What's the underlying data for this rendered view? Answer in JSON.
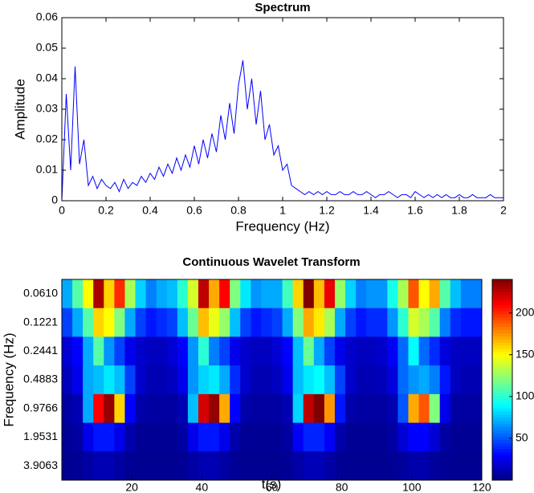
{
  "chart_data": [
    {
      "type": "line",
      "title": "Spectrum",
      "xlabel": "Frequency (Hz)",
      "ylabel": "Amplitude",
      "color": "#0000ff",
      "x": [
        0,
        0.02,
        0.04,
        0.06,
        0.08,
        0.1,
        0.12,
        0.14,
        0.16,
        0.18,
        0.2,
        0.22,
        0.24,
        0.26,
        0.28,
        0.3,
        0.32,
        0.34,
        0.36,
        0.38,
        0.4,
        0.42,
        0.44,
        0.46,
        0.48,
        0.5,
        0.52,
        0.54,
        0.56,
        0.58,
        0.6,
        0.62,
        0.64,
        0.66,
        0.68,
        0.7,
        0.72,
        0.74,
        0.76,
        0.78,
        0.8,
        0.82,
        0.84,
        0.86,
        0.88,
        0.9,
        0.92,
        0.94,
        0.96,
        0.98,
        1,
        1.02,
        1.04,
        1.06,
        1.08,
        1.1,
        1.12,
        1.14,
        1.16,
        1.18,
        1.2,
        1.22,
        1.24,
        1.26,
        1.28,
        1.3,
        1.32,
        1.34,
        1.36,
        1.38,
        1.4,
        1.42,
        1.44,
        1.46,
        1.48,
        1.5,
        1.52,
        1.54,
        1.56,
        1.58,
        1.6,
        1.62,
        1.64,
        1.66,
        1.68,
        1.7,
        1.72,
        1.74,
        1.76,
        1.78,
        1.8,
        1.82,
        1.84,
        1.86,
        1.88,
        1.9,
        1.92,
        1.94,
        1.96,
        1.98,
        2
      ],
      "values": [
        0,
        0.035,
        0.01,
        0.044,
        0.012,
        0.02,
        0.005,
        0.008,
        0.004,
        0.007,
        0.005,
        0.004,
        0.006,
        0.003,
        0.007,
        0.004,
        0.006,
        0.005,
        0.008,
        0.006,
        0.009,
        0.007,
        0.011,
        0.008,
        0.012,
        0.009,
        0.014,
        0.01,
        0.015,
        0.011,
        0.018,
        0.012,
        0.02,
        0.014,
        0.022,
        0.016,
        0.028,
        0.02,
        0.032,
        0.022,
        0.038,
        0.046,
        0.03,
        0.04,
        0.025,
        0.036,
        0.02,
        0.025,
        0.015,
        0.018,
        0.01,
        0.012,
        0.005,
        0.004,
        0.003,
        0.002,
        0.003,
        0.002,
        0.003,
        0.002,
        0.003,
        0.002,
        0.002,
        0.003,
        0.002,
        0.002,
        0.003,
        0.002,
        0.002,
        0.003,
        0.002,
        0.001,
        0.002,
        0.002,
        0.003,
        0.002,
        0.001,
        0.002,
        0.002,
        0.001,
        0.003,
        0.002,
        0.001,
        0.002,
        0.001,
        0.002,
        0.001,
        0.002,
        0.001,
        0.001,
        0.002,
        0.001,
        0.001,
        0.002,
        0.001,
        0.001,
        0.001,
        0.002,
        0.001,
        0.001,
        0.001
      ],
      "xlim": [
        0,
        2
      ],
      "xticks": [
        0,
        0.2,
        0.4,
        0.6,
        0.8,
        1,
        1.2,
        1.4,
        1.6,
        1.8,
        2
      ],
      "ylim": [
        0,
        0.06
      ],
      "yticks": [
        0,
        0.01,
        0.02,
        0.03,
        0.04,
        0.05,
        0.06
      ]
    },
    {
      "type": "heatmap",
      "title": "Continuous Wavelet Transform",
      "xlabel": "t(s)",
      "ylabel": "Frequency (Hz)",
      "y_categories": [
        "0.0610",
        "0.1221",
        "0.2441",
        "0.4883",
        "0.9766",
        "1.9531",
        "3.9063"
      ],
      "xlim": [
        0,
        120
      ],
      "xticks": [
        20,
        40,
        60,
        80,
        100,
        120
      ],
      "colormap": "jet",
      "clim": [
        0,
        240
      ],
      "cticks": [
        50,
        100,
        150,
        200
      ],
      "values": [
        [
          70,
          110,
          150,
          230,
          160,
          200,
          130,
          80,
          60,
          70,
          75,
          100,
          140,
          225,
          170,
          210,
          120,
          85,
          65,
          70,
          70,
          105,
          160,
          240,
          165,
          215,
          125,
          80,
          60,
          65,
          65,
          95,
          130,
          190,
          150,
          170,
          110,
          75,
          60,
          60
        ],
        [
          45,
          70,
          110,
          160,
          150,
          120,
          70,
          45,
          35,
          40,
          45,
          75,
          115,
          165,
          145,
          125,
          75,
          45,
          35,
          40,
          45,
          70,
          120,
          170,
          155,
          130,
          70,
          45,
          35,
          40,
          40,
          65,
          100,
          140,
          130,
          110,
          60,
          40,
          35,
          35
        ],
        [
          20,
          30,
          70,
          110,
          65,
          45,
          25,
          18,
          15,
          15,
          20,
          30,
          65,
          100,
          60,
          45,
          25,
          18,
          15,
          15,
          20,
          30,
          75,
          115,
          70,
          45,
          25,
          18,
          15,
          15,
          18,
          28,
          55,
          90,
          55,
          40,
          22,
          16,
          15,
          15
        ],
        [
          15,
          25,
          70,
          75,
          85,
          75,
          45,
          18,
          12,
          12,
          15,
          25,
          65,
          80,
          85,
          70,
          40,
          18,
          12,
          12,
          15,
          25,
          75,
          85,
          90,
          75,
          45,
          18,
          12,
          12,
          14,
          22,
          55,
          65,
          70,
          60,
          35,
          15,
          12,
          12
        ],
        [
          8,
          12,
          70,
          210,
          235,
          160,
          30,
          10,
          8,
          8,
          8,
          12,
          75,
          220,
          235,
          170,
          30,
          10,
          8,
          8,
          8,
          12,
          80,
          225,
          240,
          175,
          35,
          10,
          8,
          8,
          8,
          12,
          50,
          170,
          190,
          120,
          25,
          8,
          8,
          8
        ],
        [
          5,
          8,
          25,
          35,
          35,
          25,
          10,
          5,
          5,
          5,
          5,
          8,
          25,
          35,
          35,
          25,
          10,
          5,
          5,
          5,
          5,
          8,
          28,
          38,
          38,
          28,
          10,
          5,
          5,
          5,
          5,
          8,
          20,
          30,
          30,
          20,
          8,
          5,
          5,
          5
        ],
        [
          4,
          5,
          8,
          12,
          12,
          8,
          5,
          4,
          4,
          4,
          4,
          5,
          8,
          12,
          12,
          8,
          5,
          4,
          4,
          4,
          4,
          5,
          9,
          13,
          13,
          9,
          5,
          4,
          4,
          4,
          4,
          5,
          7,
          10,
          10,
          7,
          5,
          4,
          4,
          4
        ]
      ]
    }
  ]
}
